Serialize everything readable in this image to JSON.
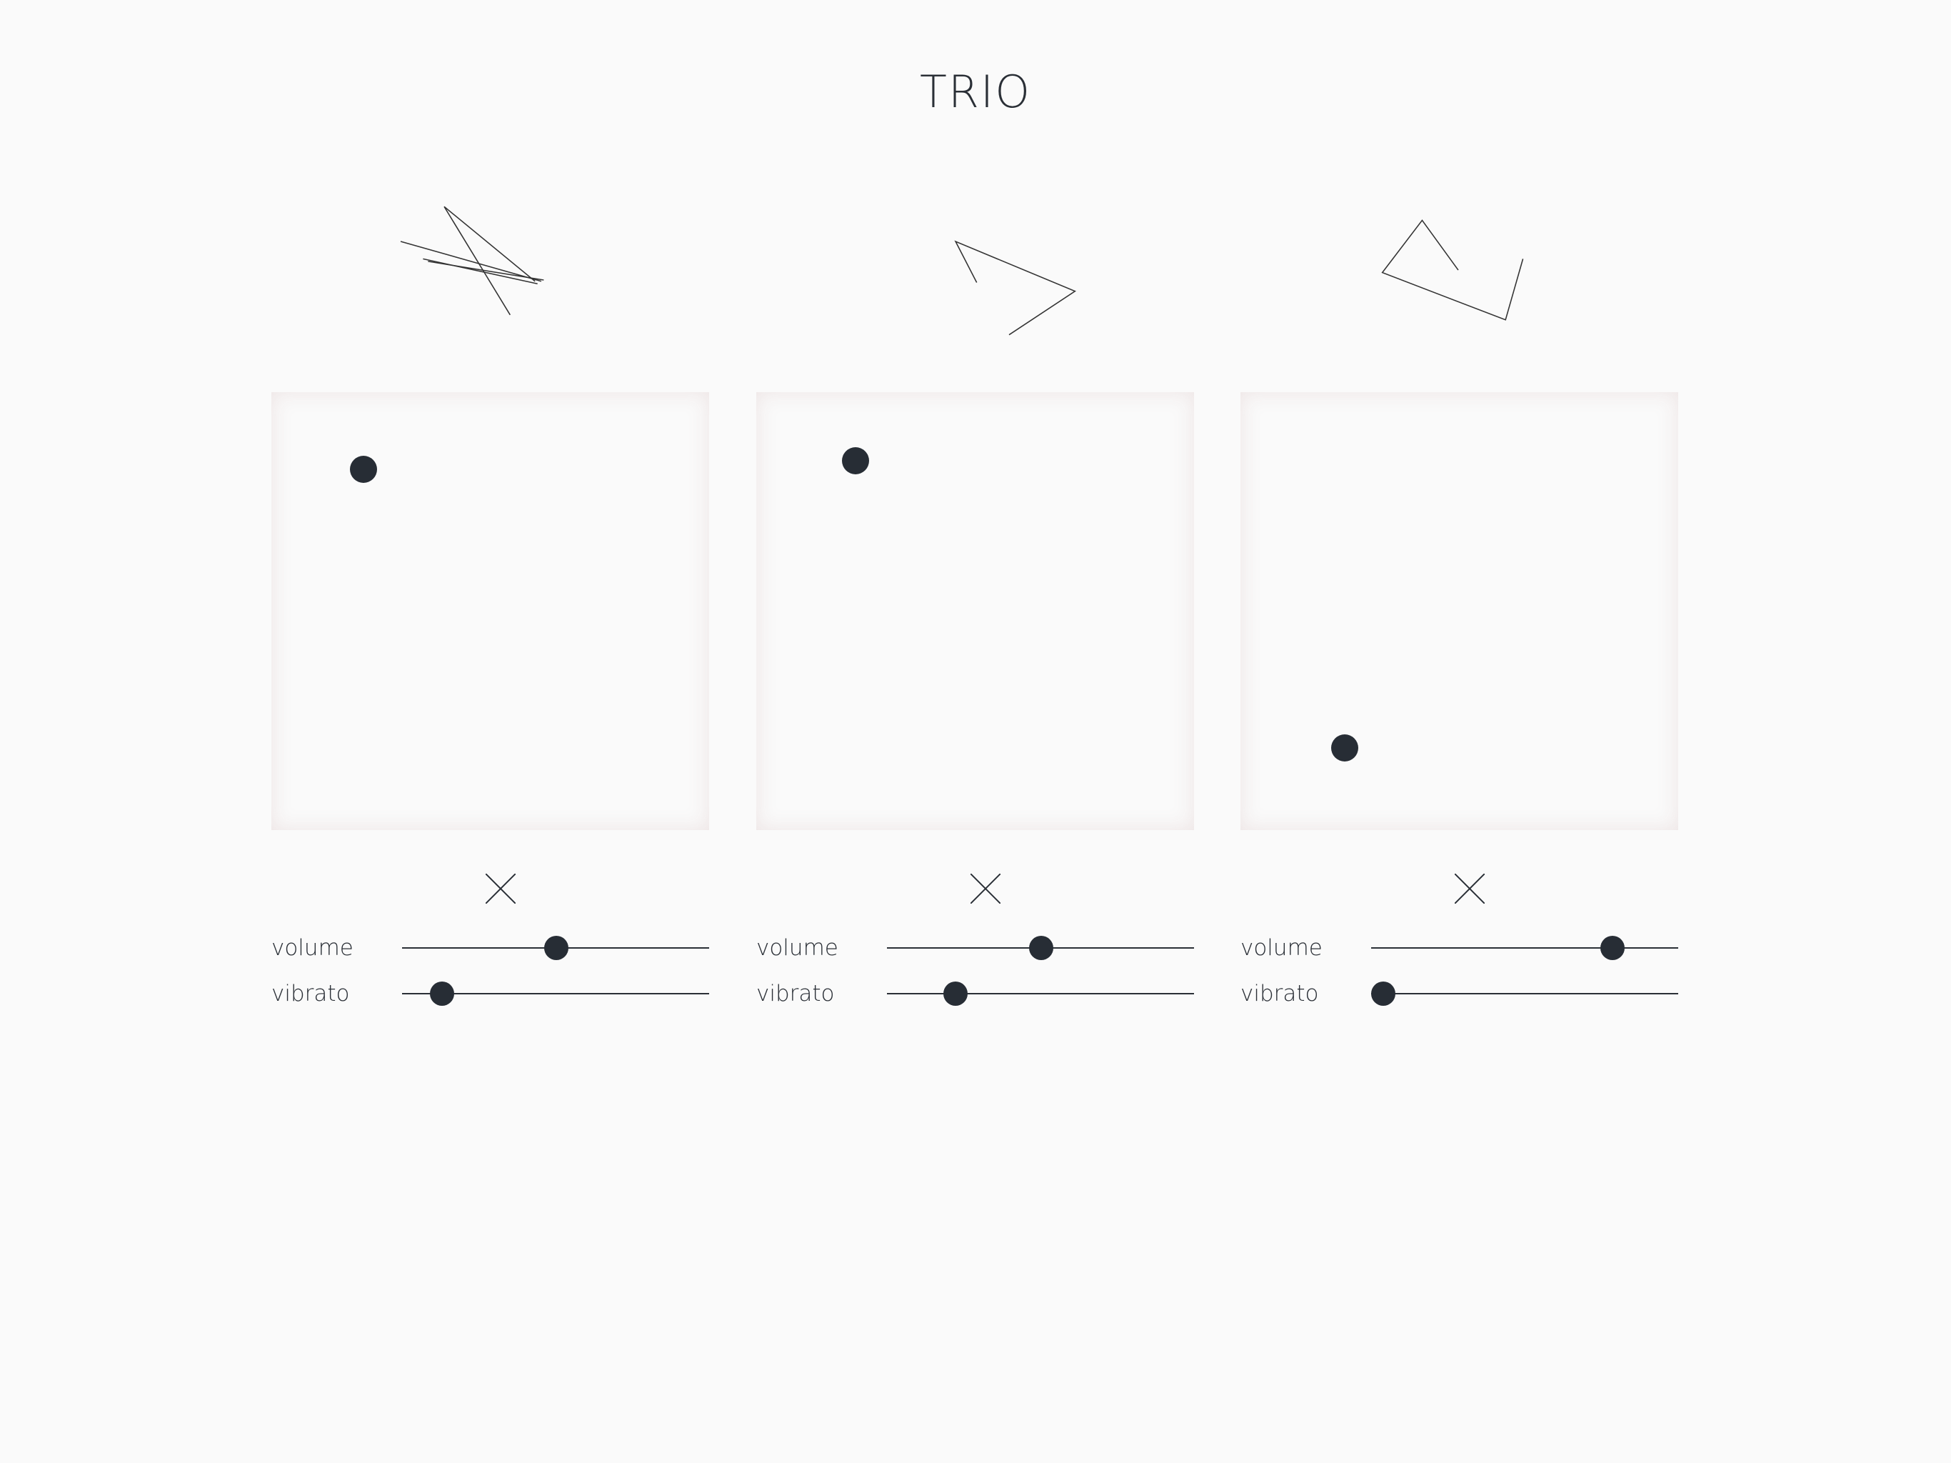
{
  "header": {
    "title": "TRIO"
  },
  "panels": [
    {
      "sliders": [
        "volume",
        "vibrato"
      ]
    },
    {
      "sliders": [
        "volume",
        "vibrato"
      ]
    },
    {
      "sliders": [
        "volume",
        "vibrato"
      ]
    }
  ]
}
